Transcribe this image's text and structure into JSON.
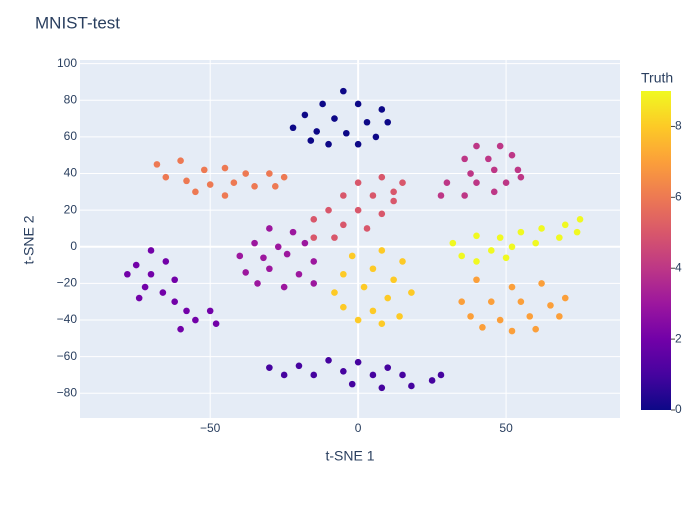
{
  "chart_data": {
    "type": "scatter",
    "title": "MNIST-test",
    "x_label": "t-SNE 1",
    "y_label": "t-SNE 2",
    "color_label": "Truth",
    "xlim": [
      -94,
      88.5
    ],
    "ylim": [
      -93.5,
      102
    ],
    "xticks": [
      {
        "value": -50,
        "label": "−50"
      },
      0,
      50
    ],
    "yticks": [
      {
        "value": -80,
        "label": "−80"
      },
      {
        "value": -60,
        "label": "−60"
      },
      {
        "value": -40,
        "label": "−40"
      },
      {
        "value": -20,
        "label": "−20"
      },
      0,
      20,
      40,
      60,
      80,
      100
    ],
    "grid": true,
    "colorscale": [
      "#0d0887",
      "#46039f",
      "#7201a8",
      "#9c179e",
      "#bd3786",
      "#d8576b",
      "#ed7953",
      "#fb9f3a",
      "#fdca26",
      "#f0f921"
    ],
    "color_range": [
      0,
      9
    ],
    "color_ticks": [
      0,
      2,
      4,
      6,
      8
    ],
    "x": [
      -5,
      -12,
      0,
      8,
      -18,
      -8,
      3,
      10,
      -22,
      -14,
      -4,
      6,
      -10,
      0,
      -16,
      -30,
      -20,
      -10,
      0,
      10,
      -25,
      -15,
      -5,
      5,
      15,
      25,
      -2,
      8,
      18,
      28,
      -70,
      -75,
      -65,
      -78,
      -70,
      -62,
      -72,
      -66,
      -74,
      -62,
      -58,
      -50,
      -55,
      -48,
      -60,
      -30,
      -22,
      -35,
      -27,
      -18,
      -40,
      -32,
      -24,
      -15,
      -38,
      -30,
      -20,
      -34,
      -25,
      -15,
      40,
      48,
      36,
      44,
      52,
      38,
      46,
      54,
      30,
      40,
      50,
      28,
      36,
      46,
      55,
      0,
      8,
      15,
      -5,
      5,
      12,
      -10,
      0,
      8,
      -15,
      -5,
      3,
      -15,
      -8,
      12,
      -68,
      -60,
      -52,
      -45,
      -38,
      -30,
      -65,
      -58,
      -50,
      -42,
      -35,
      -28,
      -55,
      -45,
      -25,
      40,
      52,
      62,
      70,
      35,
      45,
      55,
      65,
      38,
      48,
      58,
      68,
      42,
      52,
      60,
      -2,
      8,
      15,
      -5,
      5,
      12,
      -8,
      2,
      10,
      18,
      -5,
      5,
      14,
      8,
      0,
      32,
      40,
      48,
      55,
      62,
      70,
      75,
      35,
      45,
      52,
      60,
      68,
      74,
      40,
      50
    ],
    "y": [
      85,
      78,
      78,
      75,
      72,
      70,
      68,
      68,
      65,
      63,
      62,
      60,
      56,
      56,
      58,
      -66,
      -65,
      -62,
      -63,
      -66,
      -70,
      -70,
      -68,
      -70,
      -70,
      -73,
      -75,
      -77,
      -76,
      -70,
      -2,
      -10,
      -8,
      -15,
      -15,
      -18,
      -22,
      -25,
      -28,
      -30,
      -35,
      -35,
      -40,
      -42,
      -45,
      10,
      8,
      2,
      0,
      2,
      -5,
      -6,
      -4,
      -8,
      -14,
      -12,
      -15,
      -20,
      -22,
      -20,
      55,
      55,
      48,
      48,
      50,
      40,
      42,
      42,
      35,
      35,
      35,
      28,
      28,
      30,
      38,
      35,
      38,
      35,
      28,
      28,
      25,
      20,
      20,
      18,
      15,
      12,
      10,
      5,
      5,
      30,
      45,
      47,
      42,
      43,
      40,
      40,
      38,
      36,
      34,
      35,
      33,
      33,
      30,
      28,
      38,
      -18,
      -22,
      -20,
      -28,
      -30,
      -30,
      -30,
      -32,
      -38,
      -40,
      -38,
      -38,
      -44,
      -46,
      -45,
      -5,
      -2,
      -8,
      -15,
      -12,
      -18,
      -25,
      -22,
      -28,
      -25,
      -33,
      -35,
      -38,
      -42,
      -40,
      2,
      6,
      5,
      8,
      10,
      12,
      15,
      -5,
      -2,
      0,
      2,
      5,
      8,
      -8,
      -6
    ],
    "color_values": [
      0,
      0,
      0,
      0,
      0,
      0,
      0,
      0,
      0,
      0,
      0,
      0,
      0,
      0,
      0,
      1,
      1,
      1,
      1,
      1,
      1,
      1,
      1,
      1,
      1,
      1,
      1,
      1,
      1,
      1,
      2,
      2,
      2,
      2,
      2,
      2,
      2,
      2,
      2,
      2,
      2,
      2,
      2,
      2,
      2,
      3,
      3,
      3,
      3,
      3,
      3,
      3,
      3,
      3,
      3,
      3,
      3,
      3,
      3,
      3,
      4,
      4,
      4,
      4,
      4,
      4,
      4,
      4,
      4,
      4,
      4,
      4,
      4,
      4,
      4,
      5,
      5,
      5,
      5,
      5,
      5,
      5,
      5,
      5,
      5,
      5,
      5,
      5,
      5,
      5,
      6,
      6,
      6,
      6,
      6,
      6,
      6,
      6,
      6,
      6,
      6,
      6,
      6,
      6,
      6,
      7,
      7,
      7,
      7,
      7,
      7,
      7,
      7,
      7,
      7,
      7,
      7,
      7,
      7,
      7,
      8,
      8,
      8,
      8,
      8,
      8,
      8,
      8,
      8,
      8,
      8,
      8,
      8,
      8,
      8,
      9,
      9,
      9,
      9,
      9,
      9,
      9,
      9,
      9,
      9,
      9,
      9,
      9,
      9,
      9
    ]
  }
}
